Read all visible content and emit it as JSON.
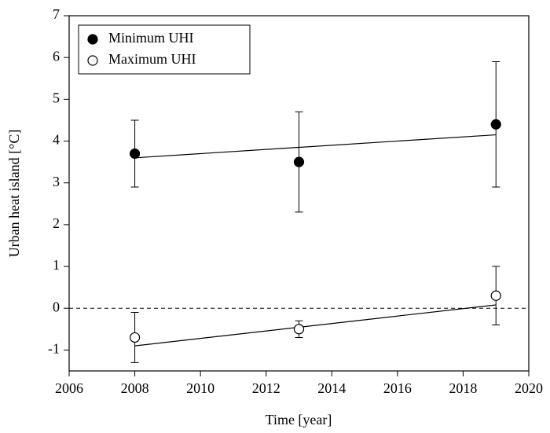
{
  "chart_data": {
    "type": "scatter",
    "x_label": "Time [year]",
    "y_label": "Urban heat island [°C]",
    "xlim": [
      2006,
      2020
    ],
    "xticks": [
      2006,
      2008,
      2010,
      2012,
      2014,
      2016,
      2018,
      2020
    ],
    "ylim": [
      -1.5,
      7
    ],
    "yticks": [
      -1,
      0,
      1,
      2,
      3,
      4,
      5,
      6,
      7
    ],
    "reference_line": 0,
    "legend": "upper left",
    "series": [
      {
        "name": "Minimum UHI",
        "color": "#000000",
        "filled": true,
        "x": [
          2008,
          2013,
          2019
        ],
        "values": [
          3.7,
          3.5,
          4.4
        ],
        "errors": [
          0.8,
          1.2,
          1.5
        ],
        "fit": {
          "x": [
            2008,
            2019
          ],
          "values": [
            3.6,
            4.15
          ]
        }
      },
      {
        "name": "Maximum UHI",
        "color": "#000000",
        "filled": false,
        "x": [
          2008,
          2013,
          2019
        ],
        "values": [
          -0.7,
          -0.5,
          0.3
        ],
        "errors": [
          0.6,
          0.2,
          0.7
        ],
        "fit": {
          "x": [
            2008,
            2019
          ],
          "values": [
            -0.9,
            0.08
          ]
        }
      }
    ]
  }
}
